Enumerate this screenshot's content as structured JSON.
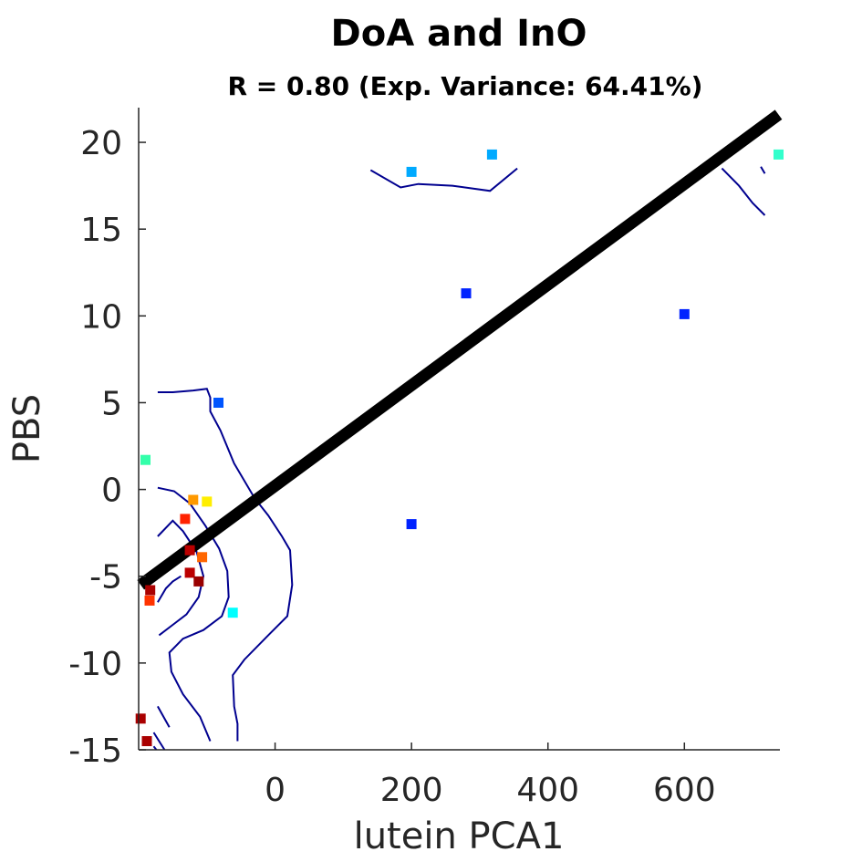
{
  "chart_data": {
    "type": "scatter",
    "title": "DoA and InO",
    "subtitle": "R = 0.80 (Exp. Variance: 64.41%)",
    "xlabel": "lutein PCA1",
    "ylabel": "PBS",
    "xlim": [
      -200,
      740
    ],
    "ylim": [
      -15,
      22
    ],
    "xticks": [
      0,
      200,
      400,
      600
    ],
    "xtick_labels": [
      "0",
      "200",
      "400",
      "600"
    ],
    "yticks": [
      -15,
      -10,
      -5,
      0,
      5,
      10,
      15,
      20
    ],
    "ytick_labels": [
      "-15",
      "-10",
      "-5",
      "0",
      "5",
      "10",
      "15",
      "20"
    ],
    "grid": false,
    "fit_line": {
      "x": [
        -197,
        738
      ],
      "y": [
        -5.5,
        21.6
      ]
    },
    "points": [
      {
        "x": 200,
        "y": 18.3,
        "color": "#00aaff"
      },
      {
        "x": 318,
        "y": 19.3,
        "color": "#00aaff"
      },
      {
        "x": 738,
        "y": 19.3,
        "color": "#33ffcc"
      },
      {
        "x": 280,
        "y": 11.3,
        "color": "#0022ff"
      },
      {
        "x": 600,
        "y": 10.1,
        "color": "#0022ff"
      },
      {
        "x": 200,
        "y": -2.0,
        "color": "#0022ff"
      },
      {
        "x": -83,
        "y": 5.0,
        "color": "#0055ff"
      },
      {
        "x": -190,
        "y": 1.7,
        "color": "#33ffaa"
      },
      {
        "x": -120,
        "y": -0.6,
        "color": "#ff9900"
      },
      {
        "x": -100,
        "y": -0.7,
        "color": "#ffee00"
      },
      {
        "x": -132,
        "y": -1.7,
        "color": "#ff2200"
      },
      {
        "x": -125,
        "y": -3.5,
        "color": "#bb0000"
      },
      {
        "x": -107,
        "y": -3.9,
        "color": "#ff6600"
      },
      {
        "x": -125,
        "y": -4.8,
        "color": "#bb0000"
      },
      {
        "x": -112,
        "y": -5.3,
        "color": "#990000"
      },
      {
        "x": -183,
        "y": -5.8,
        "color": "#aa0000"
      },
      {
        "x": -184,
        "y": -6.4,
        "color": "#ff3300"
      },
      {
        "x": -62,
        "y": -7.1,
        "color": "#00ffff"
      },
      {
        "x": -197,
        "y": -13.2,
        "color": "#aa0000"
      },
      {
        "x": -188,
        "y": -14.5,
        "color": "#aa0000"
      }
    ],
    "contours": [
      [
        [
          140,
          18.4
        ],
        [
          184,
          17.4
        ],
        [
          210,
          17.6
        ],
        [
          260,
          17.5
        ],
        [
          315,
          17.2
        ],
        [
          355,
          18.5
        ]
      ],
      [
        [
          655,
          18.5
        ],
        [
          680,
          17.5
        ],
        [
          700,
          16.5
        ],
        [
          718,
          15.8
        ]
      ],
      [
        [
          712,
          18.6
        ],
        [
          718,
          18.2
        ]
      ],
      [
        [
          -172,
          5.6
        ],
        [
          -150,
          5.6
        ],
        [
          -120,
          5.7
        ],
        [
          -100,
          5.8
        ],
        [
          -95,
          5.3
        ],
        [
          -95,
          4.5
        ],
        [
          -80,
          3.4
        ],
        [
          -60,
          1.5
        ],
        [
          -30,
          -0.5
        ],
        [
          -10,
          -1.5
        ],
        [
          10,
          -2.7
        ],
        [
          22,
          -3.5
        ],
        [
          25,
          -5.5
        ],
        [
          18,
          -7.3
        ],
        [
          -10,
          -8.4
        ],
        [
          -45,
          -9.8
        ],
        [
          -62,
          -10.7
        ],
        [
          -60,
          -12.5
        ],
        [
          -55,
          -13.5
        ],
        [
          -55,
          -14.5
        ]
      ],
      [
        [
          -172,
          0.1
        ],
        [
          -148,
          -0.1
        ],
        [
          -125,
          -0.8
        ],
        [
          -102,
          -2.1
        ],
        [
          -82,
          -3.4
        ],
        [
          -70,
          -4.7
        ],
        [
          -68,
          -6.2
        ],
        [
          -78,
          -7.3
        ],
        [
          -105,
          -8.1
        ],
        [
          -135,
          -8.6
        ],
        [
          -155,
          -9.4
        ],
        [
          -152,
          -10.5
        ],
        [
          -135,
          -11.8
        ],
        [
          -110,
          -13.1
        ],
        [
          -95,
          -14.5
        ]
      ],
      [
        [
          -172,
          -2.7
        ],
        [
          -150,
          -1.8
        ],
        [
          -135,
          -2.4
        ],
        [
          -115,
          -3.6
        ],
        [
          -105,
          -5.0
        ],
        [
          -112,
          -6.2
        ],
        [
          -130,
          -7.2
        ],
        [
          -150,
          -7.8
        ],
        [
          -170,
          -8.4
        ]
      ],
      [
        [
          -172,
          -6.5
        ],
        [
          -160,
          -5.7
        ],
        [
          -150,
          -5.3
        ],
        [
          -138,
          -5.0
        ]
      ],
      [
        [
          -172,
          -12.5
        ],
        [
          -165,
          -13.0
        ],
        [
          -155,
          -13.7
        ]
      ],
      [
        [
          -178,
          -14.0
        ],
        [
          -170,
          -14.5
        ],
        [
          -162,
          -15.0
        ]
      ],
      [
        [
          -178,
          -14.8
        ],
        [
          -174,
          -15.0
        ]
      ]
    ]
  }
}
